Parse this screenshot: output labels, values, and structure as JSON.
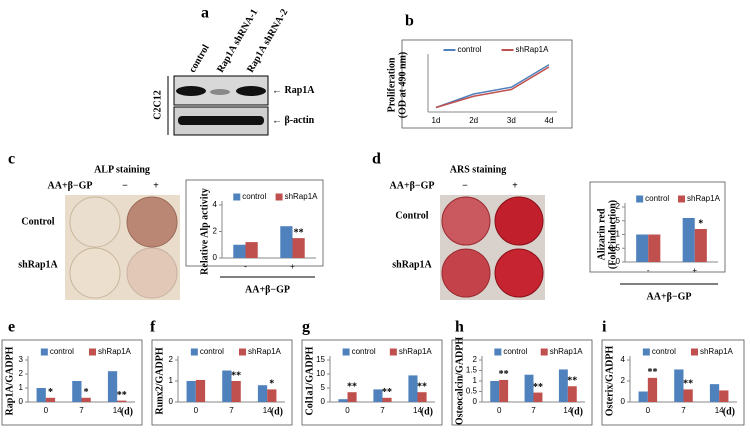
{
  "blot": {
    "panel_label": "a",
    "lanes": [
      "control",
      "Rap1A shRNA-1",
      "Rap1A shRNA-2"
    ],
    "cell_line": "C2C12",
    "bands": [
      "Rap1A",
      "β-actin"
    ]
  },
  "alp_staining": {
    "panel_label": "c",
    "title": "ALP staining",
    "treatment": "AA+β−GP",
    "columns": [
      "−",
      "+"
    ],
    "rows": [
      "Control",
      "shRap1A"
    ]
  },
  "ars_staining": {
    "panel_label": "d",
    "title": "ARS staining",
    "treatment": "AA+β−GP",
    "columns": [
      "−",
      "+"
    ],
    "rows": [
      "Control",
      "shRap1A"
    ]
  },
  "chart_data": [
    {
      "type": "line",
      "panel_label": "b",
      "ylabel": [
        "Proliferation",
        "(OD at 490 nm)"
      ],
      "categories": [
        "1d",
        "2d",
        "3d",
        "4d"
      ],
      "ylim": [
        0.8,
        3.2
      ],
      "series": [
        {
          "name": "control",
          "color": "#4f81bd",
          "values": [
            1,
            1.6,
            1.9,
            2.9
          ]
        },
        {
          "name": "shRap1A",
          "color": "#c0504d",
          "values": [
            1,
            1.5,
            1.8,
            2.8
          ]
        }
      ]
    },
    {
      "type": "bar",
      "ylabel": "Relative Alp activity",
      "xlabel": "AA+β−GP",
      "categories": [
        "-",
        "+"
      ],
      "ylim": [
        0,
        4
      ],
      "yticks": [
        0,
        2,
        4
      ],
      "annotations": [
        null,
        "**"
      ],
      "series": [
        {
          "name": "control",
          "color": "#4f81bd",
          "values": [
            1,
            2.4
          ]
        },
        {
          "name": "shRap1A",
          "color": "#c0504d",
          "values": [
            1.2,
            1.5
          ]
        }
      ]
    },
    {
      "type": "bar",
      "ylabel": [
        "Alizarin red",
        "(Fold induction)"
      ],
      "xlabel": "AA+β−GP",
      "categories": [
        "-",
        "+"
      ],
      "ylim": [
        0,
        2
      ],
      "yticks": [
        0,
        0.5,
        1,
        1.5,
        2
      ],
      "annotations": [
        null,
        "*"
      ],
      "series": [
        {
          "name": "control",
          "color": "#4f81bd",
          "values": [
            1,
            1.6
          ]
        },
        {
          "name": "shRap1A",
          "color": "#c0504d",
          "values": [
            1,
            1.2
          ]
        }
      ]
    },
    {
      "type": "bar",
      "panel_label": "e",
      "ylabel": "Rap1A/GADPH",
      "x_unit": "(d)",
      "categories": [
        "0",
        "7",
        "14"
      ],
      "ylim": [
        0,
        3
      ],
      "yticks": [
        0,
        1,
        2,
        3
      ],
      "annotations": [
        "*",
        "*",
        "**"
      ],
      "series": [
        {
          "name": "control",
          "color": "#4f81bd",
          "values": [
            1,
            1.5,
            2.2
          ]
        },
        {
          "name": "shRap1A",
          "color": "#c0504d",
          "values": [
            0.3,
            0.3,
            0.1
          ]
        }
      ]
    },
    {
      "type": "bar",
      "panel_label": "f",
      "ylabel": "Runx2/GADPH",
      "x_unit": "(d)",
      "categories": [
        "0",
        "7",
        "14"
      ],
      "ylim": [
        0,
        2
      ],
      "yticks": [
        0,
        1,
        2
      ],
      "annotations": [
        null,
        "**",
        "*"
      ],
      "series": [
        {
          "name": "control",
          "color": "#4f81bd",
          "values": [
            1,
            1.5,
            0.8
          ]
        },
        {
          "name": "shRap1A",
          "color": "#c0504d",
          "values": [
            1.05,
            1,
            0.6
          ]
        }
      ]
    },
    {
      "type": "bar",
      "panel_label": "g",
      "ylabel": "Col1a1/GADPH",
      "x_unit": "(d)",
      "categories": [
        "0",
        "7",
        "14"
      ],
      "ylim": [
        0,
        15
      ],
      "yticks": [
        0,
        5,
        10,
        15
      ],
      "annotations": [
        "**",
        "**",
        "**"
      ],
      "series": [
        {
          "name": "control",
          "color": "#4f81bd",
          "values": [
            1,
            4.5,
            9.5
          ]
        },
        {
          "name": "shRap1A",
          "color": "#c0504d",
          "values": [
            3.5,
            1.5,
            3.5
          ]
        }
      ]
    },
    {
      "type": "bar",
      "panel_label": "h",
      "ylabel": "Osteocalcin/GADPH",
      "x_unit": "(d)",
      "categories": [
        "0",
        "7",
        "14"
      ],
      "ylim": [
        0,
        2
      ],
      "yticks": [
        0,
        0.5,
        1,
        1.5,
        2
      ],
      "annotations": [
        "**",
        "**",
        "**"
      ],
      "series": [
        {
          "name": "control",
          "color": "#4f81bd",
          "values": [
            1,
            1.3,
            1.55
          ]
        },
        {
          "name": "shRap1A",
          "color": "#c0504d",
          "values": [
            1.05,
            0.45,
            0.75
          ]
        }
      ]
    },
    {
      "type": "bar",
      "panel_label": "i",
      "ylabel": "Osterix/GADPH",
      "x_unit": "(d)",
      "categories": [
        "0",
        "7",
        "14"
      ],
      "ylim": [
        0,
        4
      ],
      "yticks": [
        0,
        2,
        4
      ],
      "annotations": [
        "**",
        "**",
        null
      ],
      "series": [
        {
          "name": "control",
          "color": "#4f81bd",
          "values": [
            1,
            3.1,
            1.7
          ]
        },
        {
          "name": "shRap1A",
          "color": "#c0504d",
          "values": [
            2.3,
            1.2,
            1.1
          ]
        }
      ]
    }
  ]
}
